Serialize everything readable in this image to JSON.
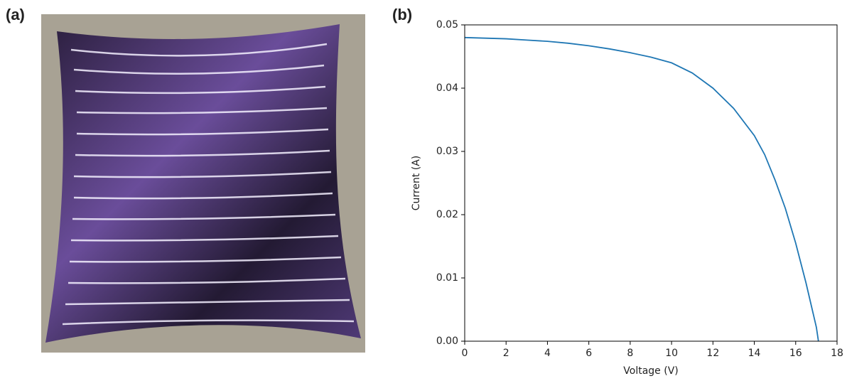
{
  "panel_labels": [
    "(a)",
    "(b)"
  ],
  "chart_data": {
    "type": "line",
    "x_label": "Voltage (V)",
    "y_label": "Current (A)",
    "x": [
      0,
      1,
      2,
      3,
      4,
      5,
      6,
      7,
      8,
      9,
      10,
      11,
      12,
      13,
      14,
      14.5,
      15,
      15.5,
      16,
      16.5,
      17,
      17.1
    ],
    "values": [
      0.048,
      0.0479,
      0.0478,
      0.0476,
      0.0474,
      0.0471,
      0.0467,
      0.0462,
      0.0456,
      0.0449,
      0.044,
      0.0424,
      0.04,
      0.0368,
      0.0325,
      0.0295,
      0.0255,
      0.021,
      0.0155,
      0.0092,
      0.0022,
      0.0
    ],
    "color": "#1f77b4",
    "xlim": [
      0,
      18
    ],
    "xticks": [
      0,
      2,
      4,
      6,
      8,
      10,
      12,
      14,
      16,
      18
    ],
    "ylim": [
      0,
      0.05
    ],
    "yticks": [
      {
        "value": 0,
        "label": "0.00"
      },
      {
        "value": 0.01,
        "label": "0.01"
      },
      {
        "value": 0.02,
        "label": "0.02"
      },
      {
        "value": 0.03,
        "label": "0.03"
      },
      {
        "value": 0.04,
        "label": "0.04"
      },
      {
        "value": 0.05,
        "label": "0.05"
      }
    ]
  }
}
